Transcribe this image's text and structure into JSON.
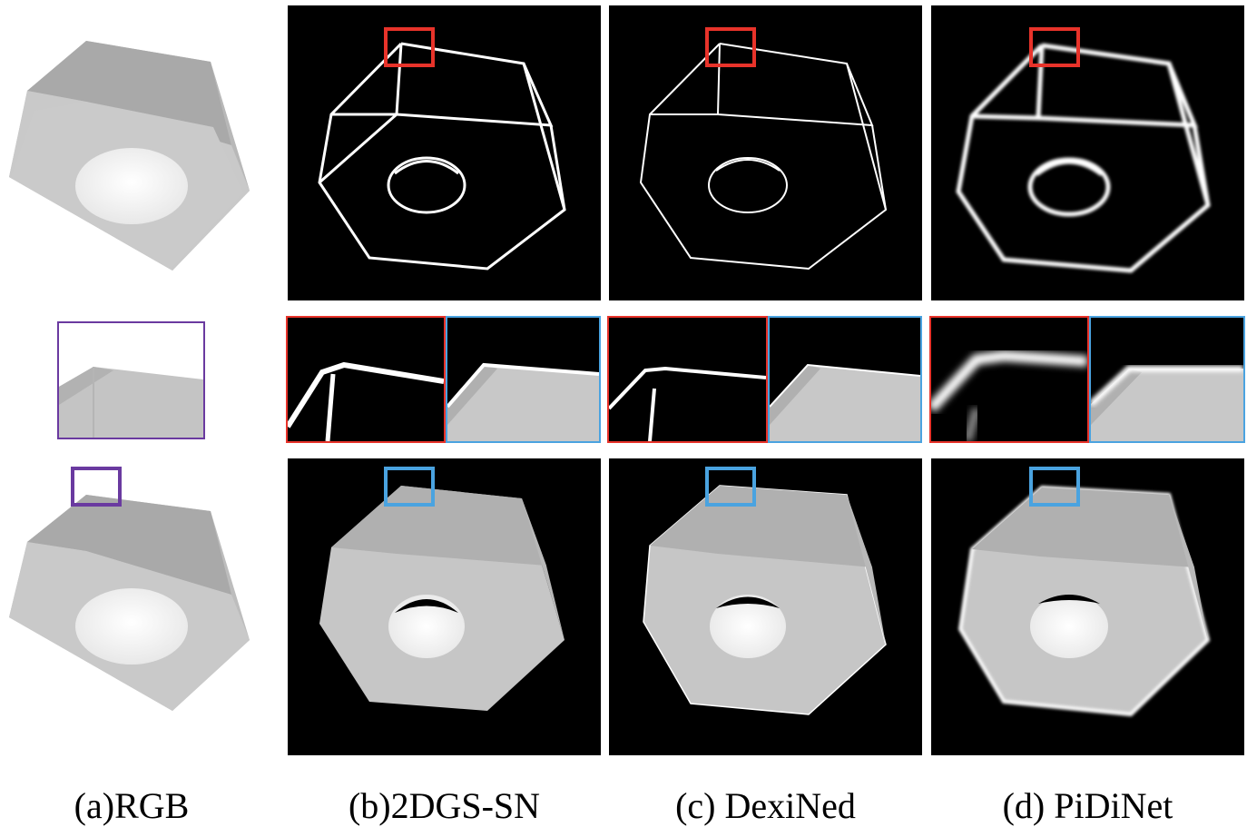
{
  "figure": {
    "captions": [
      {
        "id": "a",
        "text": "(a)RGB"
      },
      {
        "id": "b",
        "text": "(b)2DGS-SN"
      },
      {
        "id": "c",
        "text": "(c) DexiNed"
      },
      {
        "id": "d",
        "text": "(d) PiDiNet"
      }
    ],
    "colors": {
      "red_box": "#e8332a",
      "blue_box": "#4aa3e0",
      "purple_box": "#6a3aa0",
      "edge_line": "#ffffff",
      "background": "#000000",
      "object_gray": "#c8c8c8"
    }
  }
}
